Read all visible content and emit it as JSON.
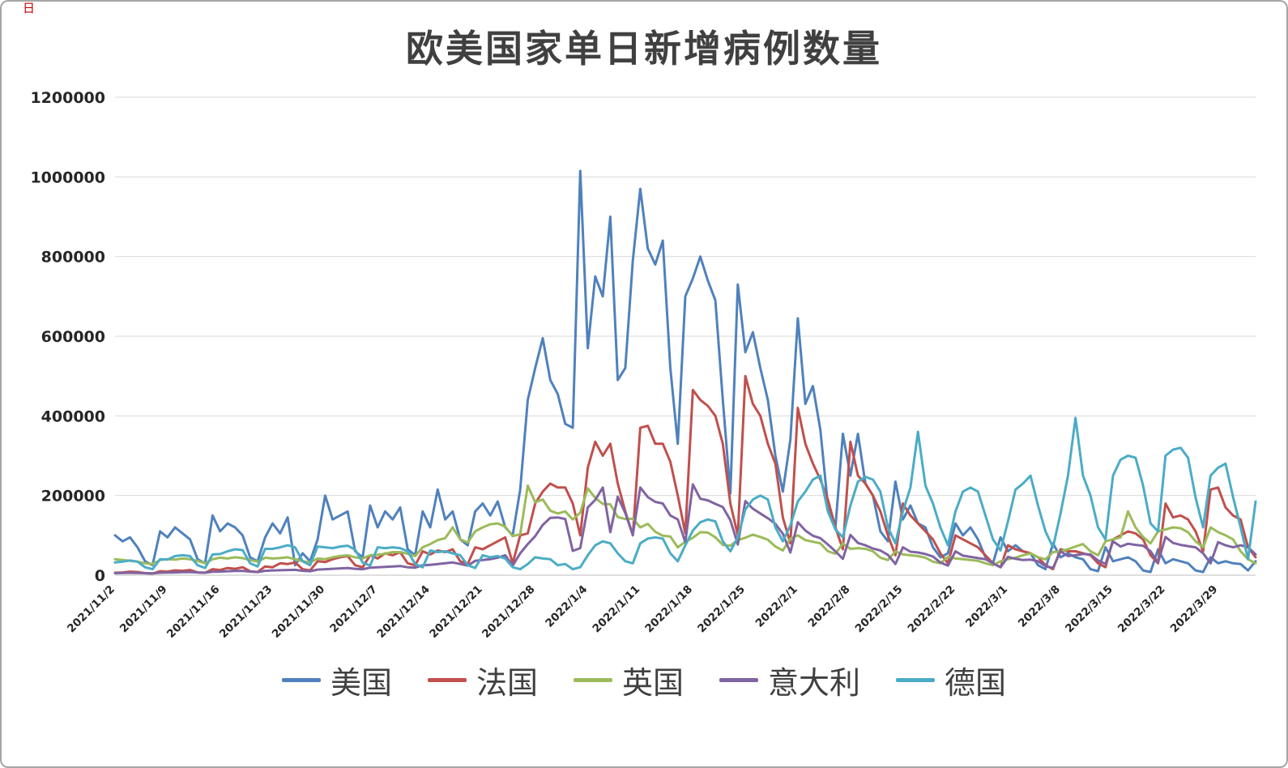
{
  "window": {
    "background": "#ffffff",
    "border_color": "#a6a6a6",
    "corner_mark": "日"
  },
  "chart_data": {
    "type": "line",
    "title": "欧美国家单日新增病例数量",
    "xlabel": "",
    "ylabel": "",
    "ylim": [
      0,
      1200000
    ],
    "grid": true,
    "legend_position": "bottom",
    "y_ticks": [
      0,
      200000,
      400000,
      600000,
      800000,
      1000000,
      1200000
    ],
    "x_tick_interval_days": 7,
    "x_tick_labels": [
      "2021/11/2",
      "2021/11/9",
      "2021/11/16",
      "2021/11/23",
      "2021/11/30",
      "2021/12/7",
      "2021/12/14",
      "2021/12/21",
      "2021/12/28",
      "2022/1/4",
      "2022/1/11",
      "2022/1/18",
      "2022/1/25",
      "2022/2/1",
      "2022/2/8",
      "2022/2/15",
      "2022/2/22",
      "2022/3/1",
      "2022/3/8",
      "2022/3/15",
      "2022/3/22",
      "2022/3/29"
    ],
    "series": [
      {
        "name": "美国",
        "color": "#4F81BD",
        "values": [
          100000,
          85000,
          95000,
          70000,
          35000,
          25000,
          110000,
          95000,
          120000,
          105000,
          90000,
          40000,
          30000,
          150000,
          110000,
          130000,
          120000,
          100000,
          45000,
          35000,
          95000,
          130000,
          105000,
          145000,
          25000,
          55000,
          35000,
          90000,
          200000,
          140000,
          150000,
          160000,
          60000,
          45000,
          175000,
          120000,
          160000,
          140000,
          170000,
          65000,
          50000,
          160000,
          120000,
          215000,
          140000,
          160000,
          90000,
          75000,
          160000,
          180000,
          150000,
          185000,
          120000,
          100000,
          215000,
          440000,
          520000,
          595000,
          490000,
          455000,
          380000,
          370000,
          1015000,
          570000,
          750000,
          700000,
          900000,
          490000,
          520000,
          790000,
          970000,
          820000,
          780000,
          840000,
          520000,
          330000,
          700000,
          745000,
          800000,
          740000,
          690000,
          440000,
          205000,
          730000,
          560000,
          610000,
          520000,
          440000,
          300000,
          210000,
          340000,
          645000,
          430000,
          475000,
          365000,
          175000,
          120000,
          355000,
          250000,
          355000,
          230000,
          200000,
          110000,
          85000,
          235000,
          140000,
          175000,
          130000,
          120000,
          70000,
          45000,
          55000,
          130000,
          100000,
          120000,
          90000,
          45000,
          30000,
          95000,
          60000,
          75000,
          60000,
          55000,
          25000,
          15000,
          80000,
          45000,
          55000,
          45000,
          40000,
          15000,
          10000,
          70000,
          35000,
          40000,
          45000,
          35000,
          12000,
          8000,
          65000,
          30000,
          40000,
          35000,
          30000,
          12000,
          8000,
          45000,
          30000,
          35000,
          30000,
          28000,
          12000,
          35000
        ]
      },
      {
        "name": "法国",
        "color": "#C0504D",
        "values": [
          6000,
          7000,
          9000,
          8000,
          5000,
          4000,
          10000,
          9000,
          12000,
          11000,
          13000,
          7000,
          6000,
          15000,
          13000,
          18000,
          16000,
          20000,
          10000,
          8000,
          22000,
          20000,
          30000,
          28000,
          32000,
          15000,
          12000,
          35000,
          33000,
          40000,
          45000,
          48000,
          25000,
          20000,
          50000,
          42000,
          55000,
          50000,
          58000,
          30000,
          25000,
          60000,
          52000,
          62000,
          58000,
          65000,
          35000,
          28000,
          70000,
          65000,
          75000,
          85000,
          95000,
          30000,
          100000,
          105000,
          180000,
          210000,
          230000,
          220000,
          220000,
          180000,
          100000,
          270000,
          335000,
          300000,
          330000,
          230000,
          160000,
          100000,
          370000,
          375000,
          330000,
          330000,
          285000,
          200000,
          105000,
          465000,
          440000,
          425000,
          400000,
          330000,
          180000,
          100000,
          500000,
          430000,
          400000,
          330000,
          280000,
          145000,
          80000,
          420000,
          330000,
          280000,
          240000,
          190000,
          120000,
          65000,
          335000,
          250000,
          230000,
          200000,
          160000,
          100000,
          50000,
          180000,
          150000,
          130000,
          110000,
          90000,
          55000,
          30000,
          100000,
          90000,
          80000,
          70000,
          50000,
          30000,
          20000,
          75000,
          65000,
          60000,
          55000,
          45000,
          25000,
          15000,
          65000,
          60000,
          60000,
          55000,
          50000,
          30000,
          20000,
          90000,
          100000,
          110000,
          105000,
          90000,
          50000,
          30000,
          180000,
          145000,
          150000,
          140000,
          110000,
          60000,
          215000,
          220000,
          170000,
          150000,
          140000,
          70000,
          45000
        ]
      },
      {
        "name": "英国",
        "color": "#9BBB59",
        "values": [
          40000,
          38000,
          36000,
          34000,
          30000,
          28000,
          38000,
          40000,
          39000,
          42000,
          40000,
          36000,
          30000,
          40000,
          44000,
          42000,
          45000,
          43000,
          38000,
          34000,
          44000,
          42000,
          43000,
          45000,
          40000,
          35000,
          32000,
          42000,
          40000,
          45000,
          48000,
          50000,
          45000,
          42000,
          50000,
          51000,
          54000,
          58000,
          58000,
          54000,
          48000,
          70000,
          78000,
          88000,
          93000,
          120000,
          90000,
          82000,
          110000,
          120000,
          128000,
          130000,
          122000,
          98000,
          103000,
          225000,
          183000,
          190000,
          162000,
          155000,
          160000,
          140000,
          157000,
          218000,
          194000,
          179000,
          178000,
          146000,
          141000,
          142000,
          120000,
          129000,
          109000,
          99000,
          97000,
          70000,
          84000,
          94000,
          108000,
          107000,
          95000,
          76000,
          74000,
          88000,
          94000,
          102000,
          96000,
          89000,
          72000,
          62000,
          92000,
          100000,
          88000,
          84000,
          80000,
          60000,
          54000,
          80000,
          66000,
          68000,
          66000,
          60000,
          44000,
          38000,
          60000,
          52000,
          50000,
          48000,
          44000,
          34000,
          30000,
          46000,
          42000,
          40000,
          38000,
          36000,
          30000,
          25000,
          35000,
          40000,
          44000,
          50000,
          55000,
          45000,
          40000,
          58000,
          60000,
          65000,
          72000,
          78000,
          60000,
          50000,
          85000,
          90000,
          95000,
          160000,
          120000,
          96000,
          80000,
          110000,
          115000,
          120000,
          118000,
          108000,
          85000,
          70000,
          120000,
          108000,
          100000,
          90000,
          60000,
          40000,
          30000
        ]
      },
      {
        "name": "意大利",
        "color": "#8064A2",
        "values": [
          5000,
          5500,
          6000,
          5500,
          5000,
          4500,
          6000,
          6500,
          7000,
          7500,
          8000,
          7000,
          6000,
          8500,
          9000,
          10000,
          10500,
          11000,
          9000,
          8000,
          11000,
          12000,
          12500,
          13000,
          13500,
          11000,
          10000,
          14000,
          15000,
          16000,
          17000,
          18000,
          16000,
          15000,
          19000,
          20000,
          21000,
          22000,
          23000,
          20000,
          19000,
          25000,
          26000,
          28000,
          30000,
          32000,
          28000,
          24000,
          36000,
          38000,
          40000,
          44000,
          50000,
          24000,
          55000,
          78000,
          98000,
          126000,
          144000,
          145000,
          141000,
          61000,
          68000,
          170000,
          189000,
          220000,
          108000,
          197000,
          156000,
          101000,
          220000,
          196000,
          184000,
          180000,
          150000,
          140000,
          83000,
          228000,
          192000,
          188000,
          179000,
          171000,
          138000,
          77000,
          186000,
          167000,
          155000,
          143000,
          129000,
          104000,
          57000,
          133000,
          112000,
          99000,
          93000,
          77000,
          60000,
          41000,
          101000,
          81000,
          75000,
          67000,
          62000,
          51000,
          28000,
          70000,
          59000,
          57000,
          53000,
          47000,
          32000,
          24000,
          60000,
          49000,
          46000,
          43000,
          40000,
          30000,
          20000,
          46000,
          41000,
          38000,
          39000,
          35000,
          23000,
          18000,
          60000,
          48000,
          50000,
          53000,
          52000,
          37000,
          28000,
          85000,
          72000,
          79000,
          76000,
          74000,
          60000,
          32000,
          96000,
          81000,
          76000,
          73000,
          70000,
          55000,
          30000,
          83000,
          75000,
          70000,
          75000,
          70000,
          52000
        ]
      },
      {
        "name": "德国",
        "color": "#4BACC6",
        "values": [
          32000,
          34000,
          37000,
          34000,
          20000,
          15000,
          40000,
          39000,
          48000,
          50000,
          48000,
          25000,
          18000,
          52000,
          53000,
          60000,
          65000,
          63000,
          30000,
          22000,
          66000,
          66000,
          70000,
          75000,
          70000,
          35000,
          25000,
          72000,
          70000,
          68000,
          72000,
          74000,
          64000,
          32000,
          24000,
          70000,
          68000,
          70000,
          68000,
          60000,
          28000,
          20000,
          62000,
          58000,
          60000,
          55000,
          50000,
          25000,
          18000,
          50000,
          45000,
          48000,
          42000,
          20000,
          15000,
          28000,
          45000,
          42000,
          40000,
          25000,
          28000,
          15000,
          20000,
          50000,
          75000,
          85000,
          80000,
          55000,
          35000,
          30000,
          80000,
          92000,
          95000,
          92000,
          55000,
          35000,
          75000,
          112000,
          133000,
          140000,
          135000,
          85000,
          60000,
          95000,
          165000,
          190000,
          200000,
          190000,
          120000,
          85000,
          125000,
          185000,
          210000,
          240000,
          250000,
          160000,
          115000,
          95000,
          175000,
          235000,
          247000,
          240000,
          210000,
          120000,
          80000,
          160000,
          220000,
          360000,
          225000,
          180000,
          120000,
          75000,
          160000,
          210000,
          220000,
          210000,
          150000,
          90000,
          62000,
          135000,
          215000,
          230000,
          250000,
          175000,
          110000,
          70000,
          155000,
          250000,
          395000,
          250000,
          200000,
          120000,
          90000,
          250000,
          290000,
          300000,
          295000,
          225000,
          130000,
          110000,
          300000,
          315000,
          320000,
          295000,
          195000,
          120000,
          250000,
          270000,
          280000,
          196000,
          120000,
          40000,
          185000
        ]
      }
    ]
  }
}
